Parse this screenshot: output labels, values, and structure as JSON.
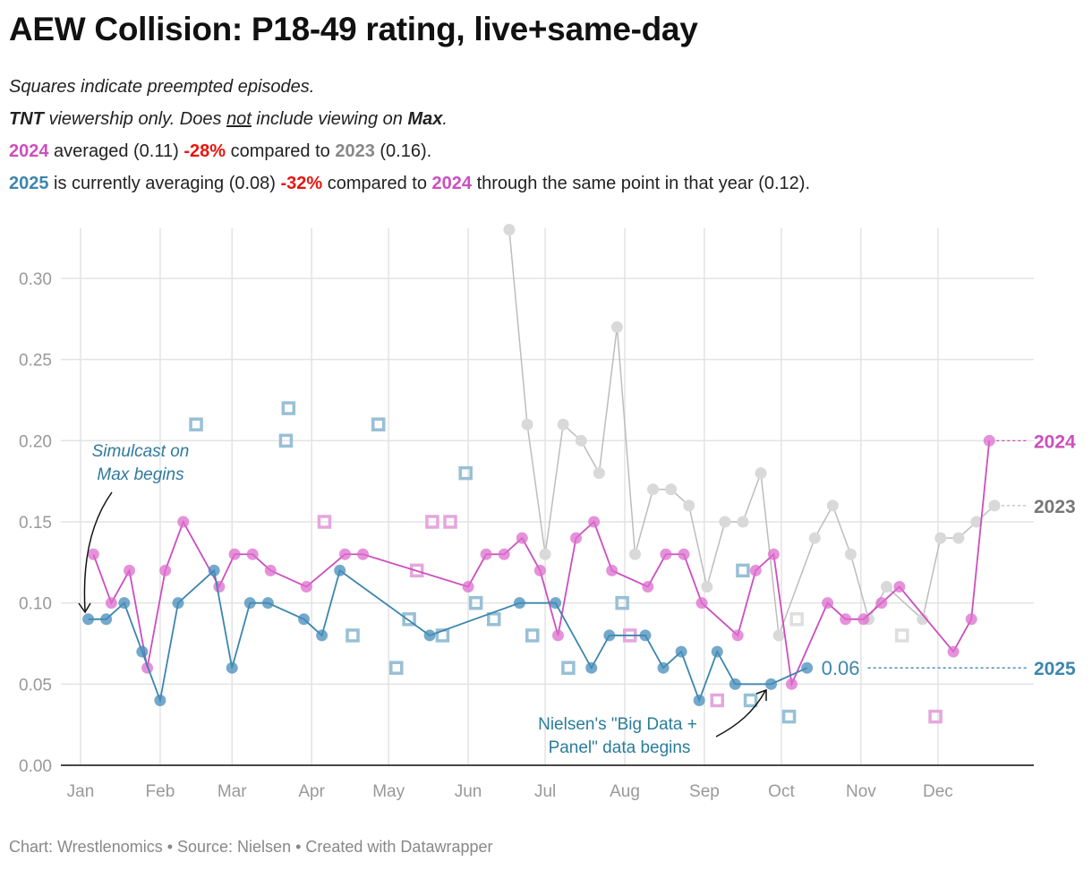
{
  "header": {
    "title": "AEW Collision: P18-49 rating, live+same-day",
    "line1": "Squares indicate preempted episodes.",
    "line2": {
      "a": "TNT",
      "b": " viewership only. Does ",
      "c": "not",
      "d": " include viewing on ",
      "e": "Max",
      "f": "."
    },
    "line3": {
      "y1": "2024",
      "t1": " averaged (0.11) ",
      "pct": "-28%",
      "t2": " compared to ",
      "y2": "2023",
      "t3": " (0.16)."
    },
    "line4": {
      "y1": "2025",
      "t1": " is currently averaging (0.08) ",
      "pct": "-32%",
      "t2": " compared to ",
      "y2": "2024",
      "t3": " through the same point in that year (0.12)."
    }
  },
  "footer": "Chart: Wrestlenomics • Source: Nielsen • Created with Datawrapper",
  "colors": {
    "2023": "#bdbdbd",
    "2024": "#cc4fbf",
    "2025": "#3d86ad",
    "red": "#e8150f",
    "label2023": "#777777"
  },
  "chart_data": {
    "type": "line",
    "title": "AEW Collision: P18-49 rating, live+same-day",
    "xlabel": "",
    "ylabel": "",
    "x_unit": "day of year",
    "xlim": [
      0,
      372
    ],
    "ylim": [
      0,
      0.33
    ],
    "y_ticks": [
      "0.00",
      "0.05",
      "0.10",
      "0.15",
      "0.20",
      "0.25",
      "0.30"
    ],
    "y_tick_values": [
      0,
      0.05,
      0.1,
      0.15,
      0.2,
      0.25,
      0.3
    ],
    "x_ticks": [
      "Jan",
      "Feb",
      "Mar",
      "Apr",
      "May",
      "Jun",
      "Jul",
      "Aug",
      "Sep",
      "Oct",
      "Nov",
      "Dec"
    ],
    "x_tick_days": [
      0,
      31,
      59,
      90,
      120,
      151,
      181,
      212,
      243,
      273,
      304,
      334
    ],
    "grid": true,
    "series": [
      {
        "name": "2023",
        "label": "2023",
        "x": [
          167,
          174,
          181,
          188,
          195,
          202,
          209,
          216,
          223,
          230,
          237,
          244,
          251,
          258,
          265,
          272,
          286,
          293,
          300,
          307,
          314,
          328,
          335,
          342,
          349,
          356
        ],
        "y": [
          0.33,
          0.21,
          0.13,
          0.21,
          0.2,
          0.18,
          0.27,
          0.13,
          0.17,
          0.17,
          0.16,
          0.11,
          0.15,
          0.15,
          0.18,
          0.08,
          0.14,
          0.16,
          0.13,
          0.09,
          0.11,
          0.09,
          0.14,
          0.14,
          0.15,
          0.16
        ],
        "preempted": {
          "x": [
            279,
            320
          ],
          "y": [
            0.09,
            0.08
          ]
        }
      },
      {
        "name": "2024",
        "label": "2024",
        "x": [
          5,
          12,
          19,
          26,
          33,
          40,
          54,
          60,
          67,
          74,
          88,
          103,
          110,
          151,
          158,
          165,
          172,
          179,
          186,
          193,
          200,
          207,
          221,
          228,
          235,
          242,
          256,
          263,
          270,
          277,
          291,
          298,
          305,
          312,
          319,
          340,
          347,
          354
        ],
        "y": [
          0.13,
          0.1,
          0.12,
          0.06,
          0.12,
          0.15,
          0.11,
          0.13,
          0.13,
          0.12,
          0.11,
          0.13,
          0.13,
          0.11,
          0.13,
          0.13,
          0.14,
          0.12,
          0.08,
          0.14,
          0.15,
          0.12,
          0.11,
          0.13,
          0.13,
          0.1,
          0.08,
          0.12,
          0.13,
          0.05,
          0.1,
          0.09,
          0.09,
          0.1,
          0.11,
          0.07,
          0.09,
          0.2
        ],
        "preempted": {
          "x": [
            95,
            116,
            131,
            137,
            144,
            214,
            248,
            333
          ],
          "y": [
            0.15,
            0.21,
            0.12,
            0.15,
            0.15,
            0.08,
            0.04,
            0.03
          ]
        }
      },
      {
        "name": "2025",
        "label": "2025",
        "last_value_label": "0.06",
        "x": [
          3,
          10,
          17,
          24,
          31,
          38,
          52,
          59,
          66,
          73,
          87,
          94,
          101,
          136,
          171,
          185,
          199,
          206,
          220,
          227,
          234,
          241,
          248,
          255,
          269,
          283
        ],
        "y": [
          0.09,
          0.09,
          0.1,
          0.07,
          0.04,
          0.1,
          0.12,
          0.06,
          0.1,
          0.1,
          0.09,
          0.08,
          0.12,
          0.08,
          0.1,
          0.1,
          0.06,
          0.08,
          0.08,
          0.06,
          0.07,
          0.04,
          0.07,
          0.05,
          0.05,
          0.06
        ],
        "preempted": {
          "x": [
            45,
            81,
            80,
            116,
            106,
            123,
            128,
            141,
            150,
            154,
            161,
            176,
            190,
            211,
            258,
            261,
            276
          ],
          "y": [
            0.21,
            0.22,
            0.2,
            0.21,
            0.08,
            0.06,
            0.09,
            0.08,
            0.18,
            0.1,
            0.09,
            0.08,
            0.06,
            0.1,
            0.12,
            0.04,
            0.03
          ]
        }
      }
    ],
    "annotations": [
      {
        "lines": [
          "Simulcast on",
          "Max begins"
        ]
      },
      {
        "lines": [
          "Nielsen's \"Big Data +",
          "Panel\" data begins"
        ]
      }
    ]
  }
}
